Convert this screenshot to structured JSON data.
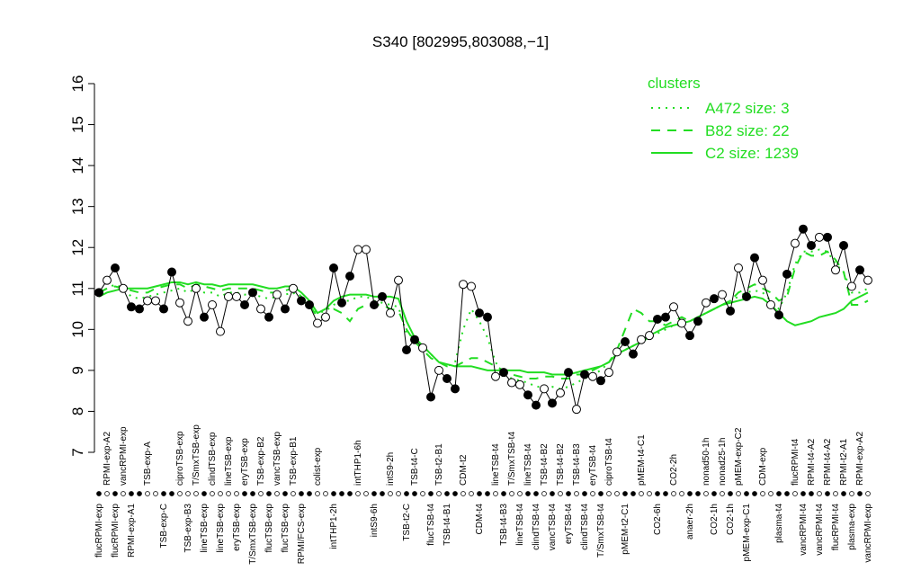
{
  "chart_data": {
    "type": "line",
    "title": "S340 [802995,803088,−1]",
    "legend_title": "clusters",
    "legend": "top-right",
    "ylim": [
      7,
      16
    ],
    "yticks": [
      7,
      8,
      9,
      10,
      11,
      12,
      13,
      14,
      15,
      16
    ],
    "categories": [
      "flucRPMI-exp",
      "RPMI-exp-A2",
      "flucRPMI-exp",
      "vancRPMI-exp",
      "RPMI-exp-A1",
      null,
      "TSB-exp-A",
      null,
      "TSB-exp-C",
      null,
      "ciproTSB-exp",
      "TSB-exp-B3",
      "T/SmxTSB-exp",
      "lineTSB-exp",
      "clindTSB-exp",
      "lineTSB-exp",
      "lineTSB-exp",
      "eryTSB-exp",
      "eryTSB-exp",
      "T/SmxTSB-exp",
      "TSB-exp-B2",
      "flucTSB-exp",
      "vancTSB-exp",
      "flucTSB-exp",
      "TSB-exp-B1",
      "RPMI/FCS-exp",
      null,
      "colist-exp",
      null,
      "intTHP1-2h",
      null,
      null,
      "intTHP1-6h",
      null,
      "intS9-6h",
      null,
      "intS9-2h",
      null,
      "TSB-t2-C",
      "TSB-t4-C",
      null,
      "flucTSB-t4",
      "TSB-t2-B1",
      "TSB-t4-B1",
      null,
      "CDM-t2",
      null,
      "CDM-t4",
      null,
      "lineTSB-t4",
      "TSB-t4-B3",
      "T/SmxTSB-t4",
      "lineTSB-t4",
      "lineTSB-t4",
      "clindTSB-t4",
      "TSB-t4-B2",
      "vancTSB-t4",
      "TSB-t4-B2",
      "eryTSB-t4",
      "TSB-t4-B3",
      "clindTSB-t4",
      "eryTSB-t4",
      "T/SmxTSB-t4",
      "ciproTSB-t4",
      null,
      "pMEM-t2-C1",
      null,
      "pMEM-t4-C1",
      null,
      "CO2-6h",
      null,
      "CO2-2h",
      null,
      "anaer-2h",
      null,
      "nonad50-1h",
      "CO2-1h",
      "nonad25-1h",
      "CO2-1h",
      "pMEM-exp-C2",
      "pMEM-exp-C1",
      null,
      "CDM-exp",
      null,
      "plasma-t4",
      null,
      "flucRPMI-t4",
      "vancRPMI-t4",
      "RPMI-t4-A2",
      "vancRPMI-t4",
      "RPMI-t4-A2",
      "flucRPMI-t4",
      "RPMI-t2-A1",
      "plasma-exp",
      "RPMI-exp-A2",
      "vancRPMI-exp"
    ],
    "values": [
      10.9,
      11.2,
      11.5,
      11.0,
      10.55,
      10.5,
      10.7,
      10.7,
      10.5,
      11.4,
      10.65,
      10.2,
      11.0,
      10.3,
      10.6,
      9.95,
      10.8,
      10.8,
      10.6,
      10.9,
      10.5,
      10.3,
      10.85,
      10.5,
      11.0,
      10.7,
      10.6,
      10.15,
      10.3,
      11.5,
      10.65,
      11.3,
      11.95,
      11.95,
      10.6,
      10.8,
      10.4,
      11.2,
      9.5,
      9.75,
      9.55,
      8.35,
      9.0,
      8.8,
      8.55,
      11.1,
      11.05,
      10.4,
      10.3,
      8.85,
      8.95,
      8.7,
      8.65,
      8.4,
      8.15,
      8.55,
      8.2,
      8.45,
      8.95,
      8.05,
      8.9,
      8.85,
      8.75,
      8.95,
      9.45,
      9.7,
      9.4,
      9.75,
      9.85,
      10.25,
      10.3,
      10.55,
      10.15,
      9.85,
      10.2,
      10.65,
      10.75,
      10.85,
      10.45,
      11.5,
      10.8,
      11.75,
      11.2,
      10.6,
      10.35,
      11.35,
      12.1,
      12.45,
      12.05,
      12.25,
      12.25,
      11.45,
      12.05,
      11.05,
      11.45,
      11.2
    ],
    "point_fill": [
      "#000",
      "#fff",
      "#000",
      "#fff",
      "#000",
      "#000",
      "#fff",
      "#fff",
      "#000",
      "#000",
      "#fff",
      "#fff",
      "#fff",
      "#000",
      "#fff",
      "#fff",
      "#fff",
      "#fff",
      "#000",
      "#000",
      "#fff",
      "#000",
      "#fff",
      "#000",
      "#fff",
      "#000",
      "#000",
      "#fff",
      "#fff",
      "#000",
      "#000",
      "#000",
      "#fff",
      "#fff",
      "#000",
      "#000",
      "#fff",
      "#fff",
      "#000",
      "#000",
      "#fff",
      "#000",
      "#fff",
      "#000",
      "#000",
      "#fff",
      "#fff",
      "#000",
      "#000",
      "#fff",
      "#000",
      "#fff",
      "#fff",
      "#000",
      "#000",
      "#fff",
      "#000",
      "#fff",
      "#000",
      "#fff",
      "#000",
      "#fff",
      "#000",
      "#fff",
      "#fff",
      "#000",
      "#000",
      "#fff",
      "#fff",
      "#000",
      "#000",
      "#fff",
      "#fff",
      "#000",
      "#000",
      "#fff",
      "#000",
      "#fff",
      "#000",
      "#fff",
      "#000",
      "#000",
      "#fff",
      "#fff",
      "#000",
      "#000",
      "#fff",
      "#000",
      "#000",
      "#fff",
      "#000",
      "#fff",
      "#000",
      "#fff",
      "#000",
      "#fff"
    ],
    "series": [
      {
        "name": "A472 size: 3",
        "color": "#22dd22",
        "dash": "dotted",
        "values": [
          10.9,
          11.0,
          11.1,
          11.0,
          10.8,
          10.75,
          10.8,
          10.85,
          10.9,
          10.95,
          11.0,
          10.9,
          11.0,
          10.9,
          10.9,
          10.8,
          10.9,
          10.9,
          10.85,
          10.85,
          10.8,
          10.75,
          10.8,
          10.85,
          10.9,
          10.7,
          10.6,
          10.4,
          10.45,
          10.6,
          10.7,
          10.7,
          10.8,
          10.8,
          10.7,
          10.65,
          10.6,
          10.55,
          9.9,
          9.8,
          9.6,
          9.4,
          9.2,
          9.1,
          9.2,
          10.0,
          10.5,
          10.2,
          9.8,
          9.2,
          8.9,
          8.8,
          8.75,
          8.7,
          8.6,
          8.6,
          8.6,
          8.55,
          8.6,
          8.7,
          8.8,
          8.9,
          9.0,
          9.2,
          9.4,
          9.5,
          9.6,
          9.7,
          9.8,
          9.9,
          10.0,
          10.1,
          10.1,
          10.2,
          10.3,
          10.4,
          10.5,
          10.6,
          10.7,
          10.8,
          10.9,
          10.95,
          10.9,
          10.7,
          10.5,
          10.9,
          11.6,
          11.9,
          11.9,
          11.95,
          11.9,
          11.6,
          11.4,
          10.9,
          10.9,
          11.0
        ]
      },
      {
        "name": "B82 size: 22",
        "color": "#22dd22",
        "dash": "dashed",
        "values": [
          10.9,
          11.0,
          11.05,
          11.0,
          10.95,
          10.9,
          10.9,
          11.0,
          11.05,
          11.1,
          11.1,
          11.0,
          11.1,
          11.05,
          11.0,
          10.95,
          11.0,
          11.0,
          11.0,
          11.0,
          10.95,
          10.9,
          10.9,
          10.95,
          11.0,
          10.8,
          10.6,
          10.3,
          10.3,
          10.5,
          10.4,
          10.2,
          10.5,
          10.6,
          10.6,
          10.6,
          10.5,
          10.45,
          10.0,
          9.7,
          9.5,
          9.3,
          9.2,
          9.1,
          9.1,
          9.2,
          9.3,
          9.3,
          9.2,
          9.1,
          9.0,
          8.9,
          8.85,
          8.8,
          8.8,
          8.85,
          8.85,
          8.8,
          8.8,
          8.9,
          8.9,
          9.0,
          9.1,
          9.2,
          9.5,
          10.0,
          10.5,
          10.4,
          10.2,
          10.2,
          10.1,
          10.2,
          10.3,
          10.2,
          10.3,
          10.4,
          10.5,
          10.6,
          10.7,
          10.9,
          11.0,
          11.1,
          11.0,
          10.9,
          10.7,
          10.8,
          11.5,
          11.9,
          11.8,
          11.8,
          11.9,
          11.7,
          11.4,
          10.6,
          10.6,
          10.7
        ]
      },
      {
        "name": "C2 size: 1239",
        "color": "#22dd22",
        "dash": "solid",
        "values": [
          10.8,
          10.9,
          10.95,
          11.0,
          11.0,
          11.0,
          11.0,
          11.05,
          11.1,
          11.15,
          11.15,
          11.1,
          11.15,
          11.1,
          11.1,
          11.05,
          11.1,
          11.1,
          11.1,
          11.1,
          11.05,
          11.0,
          11.0,
          11.05,
          11.05,
          10.9,
          10.7,
          10.4,
          10.5,
          10.7,
          10.8,
          10.85,
          10.85,
          10.85,
          10.8,
          10.8,
          10.8,
          10.75,
          10.2,
          9.8,
          9.6,
          9.4,
          9.2,
          9.15,
          9.1,
          9.1,
          9.1,
          9.05,
          9.0,
          9.0,
          9.0,
          9.0,
          9.0,
          8.95,
          8.95,
          8.95,
          8.9,
          8.9,
          8.9,
          8.95,
          9.0,
          9.05,
          9.1,
          9.2,
          9.4,
          9.5,
          9.6,
          9.7,
          9.85,
          9.95,
          10.05,
          10.1,
          10.15,
          10.2,
          10.3,
          10.4,
          10.5,
          10.6,
          10.65,
          10.7,
          10.75,
          10.8,
          10.75,
          10.6,
          10.4,
          10.2,
          10.1,
          10.15,
          10.2,
          10.3,
          10.35,
          10.4,
          10.5,
          10.7,
          10.8,
          10.9
        ]
      }
    ]
  }
}
